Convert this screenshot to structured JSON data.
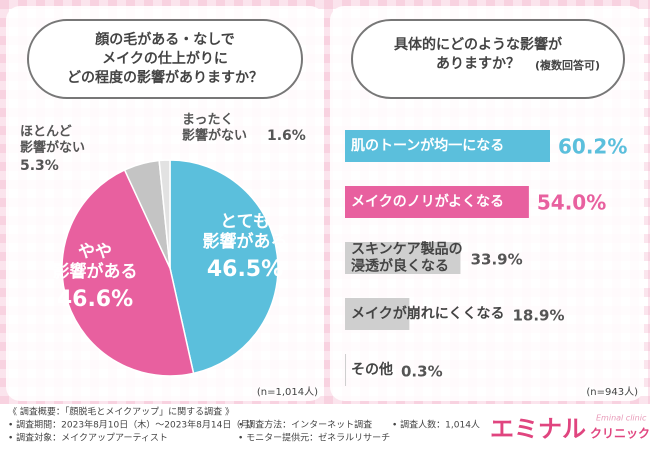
{
  "chart_data": [
    {
      "type": "pie",
      "title": [
        "顔の毛がある・なしで",
        "メイクの仕上がりに",
        "どの程度の影響がありますか？"
      ],
      "categories": [
        [
          "とても",
          "影響がある"
        ],
        [
          "やや",
          "影響がある"
        ],
        [
          "ほとんど",
          "影響がない"
        ],
        [
          "まったく",
          "影響がない"
        ]
      ],
      "values": [
        46.5,
        46.6,
        5.3,
        1.6
      ],
      "value_labels": [
        "46.5%",
        "46.6%",
        "5.3%",
        "1.6%"
      ],
      "colors": [
        "#5bbfdc",
        "#e8609f",
        "#c4c4c4",
        "#e2e2e2"
      ],
      "note": "(n=1,014人)"
    },
    {
      "type": "barh",
      "title": [
        "具体的にどのような影響が",
        "ありますか？"
      ],
      "subtitle": "(複数回答可)",
      "categories": [
        [
          "肌のトーンが均一になる"
        ],
        [
          "メイクのノリがよくなる"
        ],
        [
          "スキンケア製品の",
          "浸透が良くなる"
        ],
        [
          "メイクが崩れにくくなる"
        ],
        [
          "その他"
        ]
      ],
      "values": [
        60.2,
        54.0,
        33.9,
        18.9,
        0.3
      ],
      "value_labels": [
        "60.2%",
        "54.0%",
        "33.9%",
        "18.9%",
        "0.3%"
      ],
      "colors": [
        "#5bbfdc",
        "#e8609f",
        "#cfcfcf",
        "#cfcfcf",
        "#cfcfcf"
      ],
      "note": "(n=943人)"
    }
  ],
  "footer": {
    "heading": "《 調査概要：「顔脱毛とメイクアップ」に関する調査 》",
    "items": [
      "• 調査期間：2023年8月10日（木）〜2023年8月14日（月）",
      "• 調査方法：インターネット調査",
      "• 調査人数：1,014人",
      "• 調査対象：メイクアップアーティスト",
      "• モニター提供元：ゼネラルリサーチ"
    ]
  },
  "logo": {
    "name": "エミナル",
    "sub": "クリニック",
    "en": "Eminal clinic"
  }
}
